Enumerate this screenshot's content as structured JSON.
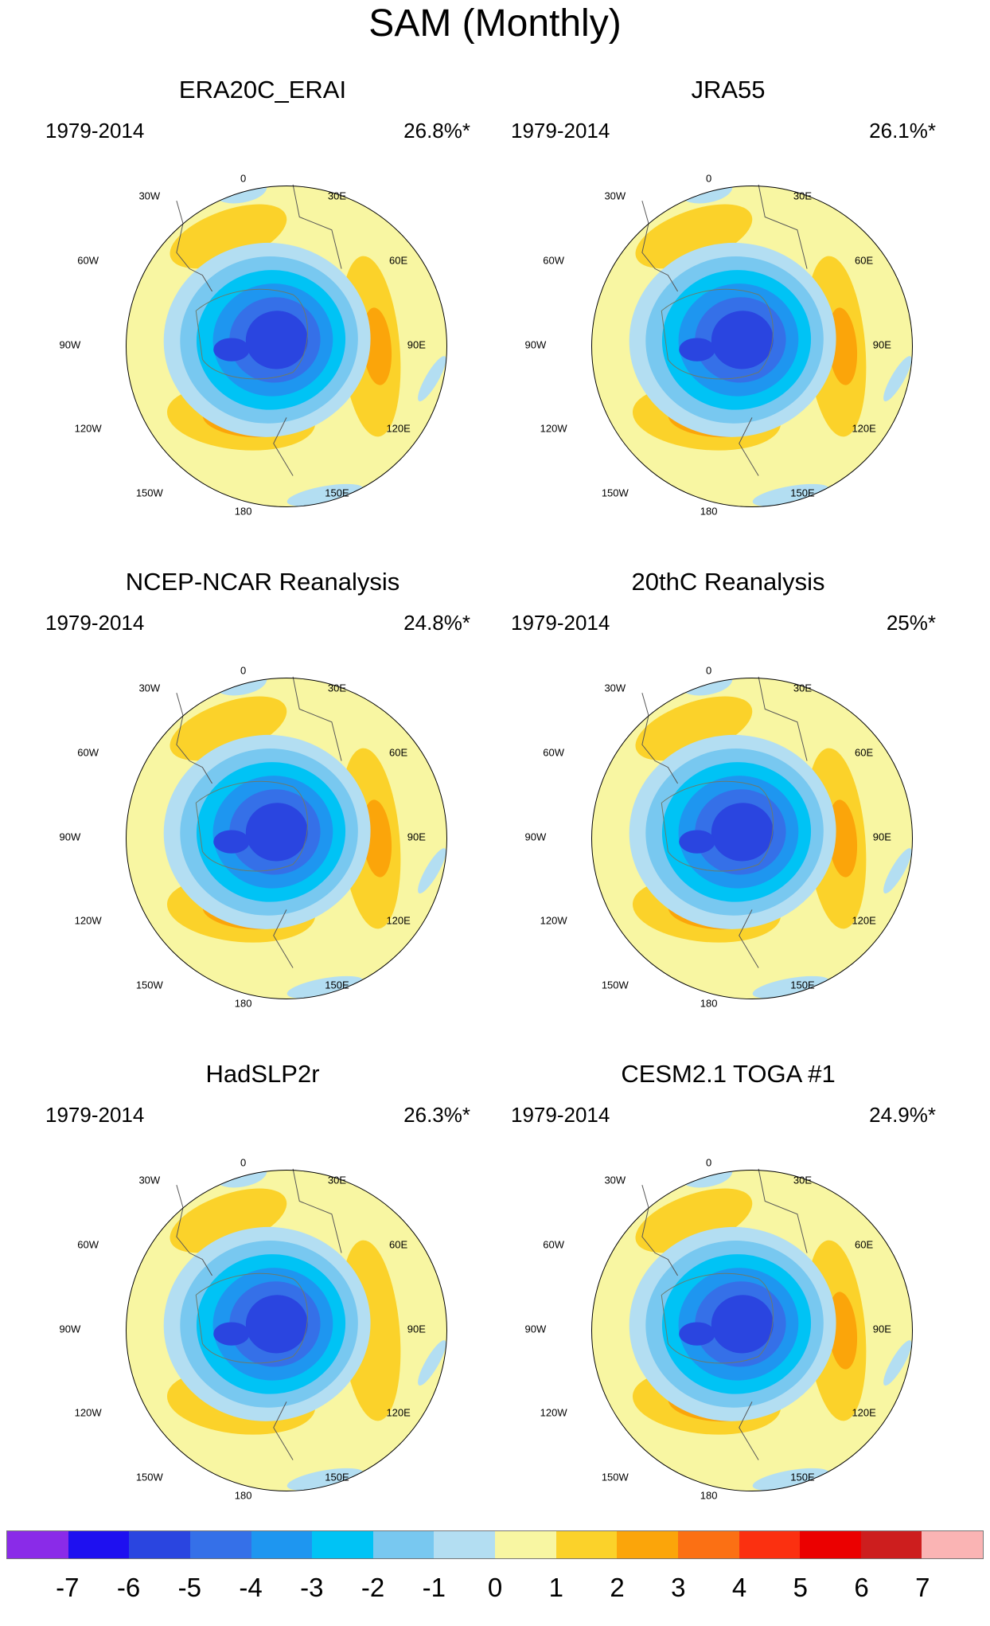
{
  "figure_title": "SAM (Monthly)",
  "longitude_labels": {
    "l0": "0",
    "l30e": "30E",
    "l60e": "60E",
    "l90e": "90E",
    "l120e": "120E",
    "l150e": "150E",
    "l180": "180",
    "l150w": "150W",
    "l120w": "120W",
    "l90w": "90W",
    "l60w": "60W",
    "l30w": "30W"
  },
  "panels": [
    {
      "title": "ERA20C_ERAI",
      "years": "1979-2014",
      "variance": "26.8%*",
      "pos_strength": 3,
      "neg_strength": 5
    },
    {
      "title": "JRA55",
      "years": "1979-2014",
      "variance": "26.1%*",
      "pos_strength": 3,
      "neg_strength": 5
    },
    {
      "title": "NCEP-NCAR Reanalysis",
      "years": "1979-2014",
      "variance": "24.8%*",
      "pos_strength": 3,
      "neg_strength": 5
    },
    {
      "title": "20thC Reanalysis",
      "years": "1979-2014",
      "variance": "25%*",
      "pos_strength": 3,
      "neg_strength": 5
    },
    {
      "title": "HadSLP2r",
      "years": "1979-2014",
      "variance": "26.3%*",
      "pos_strength": 2,
      "neg_strength": 5
    },
    {
      "title": "CESM2.1 TOGA #1",
      "years": "1979-2014",
      "variance": "24.9%*",
      "pos_strength": 3,
      "neg_strength": 5
    }
  ],
  "colorbar": {
    "colors": [
      "#8a2be8",
      "#1e10f0",
      "#2a45e0",
      "#3570e8",
      "#1e96f0",
      "#00c3f5",
      "#78c8f0",
      "#b3def2",
      "#f8f6a2",
      "#fbd22a",
      "#fba50a",
      "#fb7014",
      "#fb3010",
      "#eb0000",
      "#cd1e1e",
      "#fab4b4"
    ],
    "labels": [
      "-7",
      "-6",
      "-5",
      "-4",
      "-3",
      "-2",
      "-1",
      "0",
      "1",
      "2",
      "3",
      "4",
      "5",
      "6",
      "7"
    ]
  }
}
